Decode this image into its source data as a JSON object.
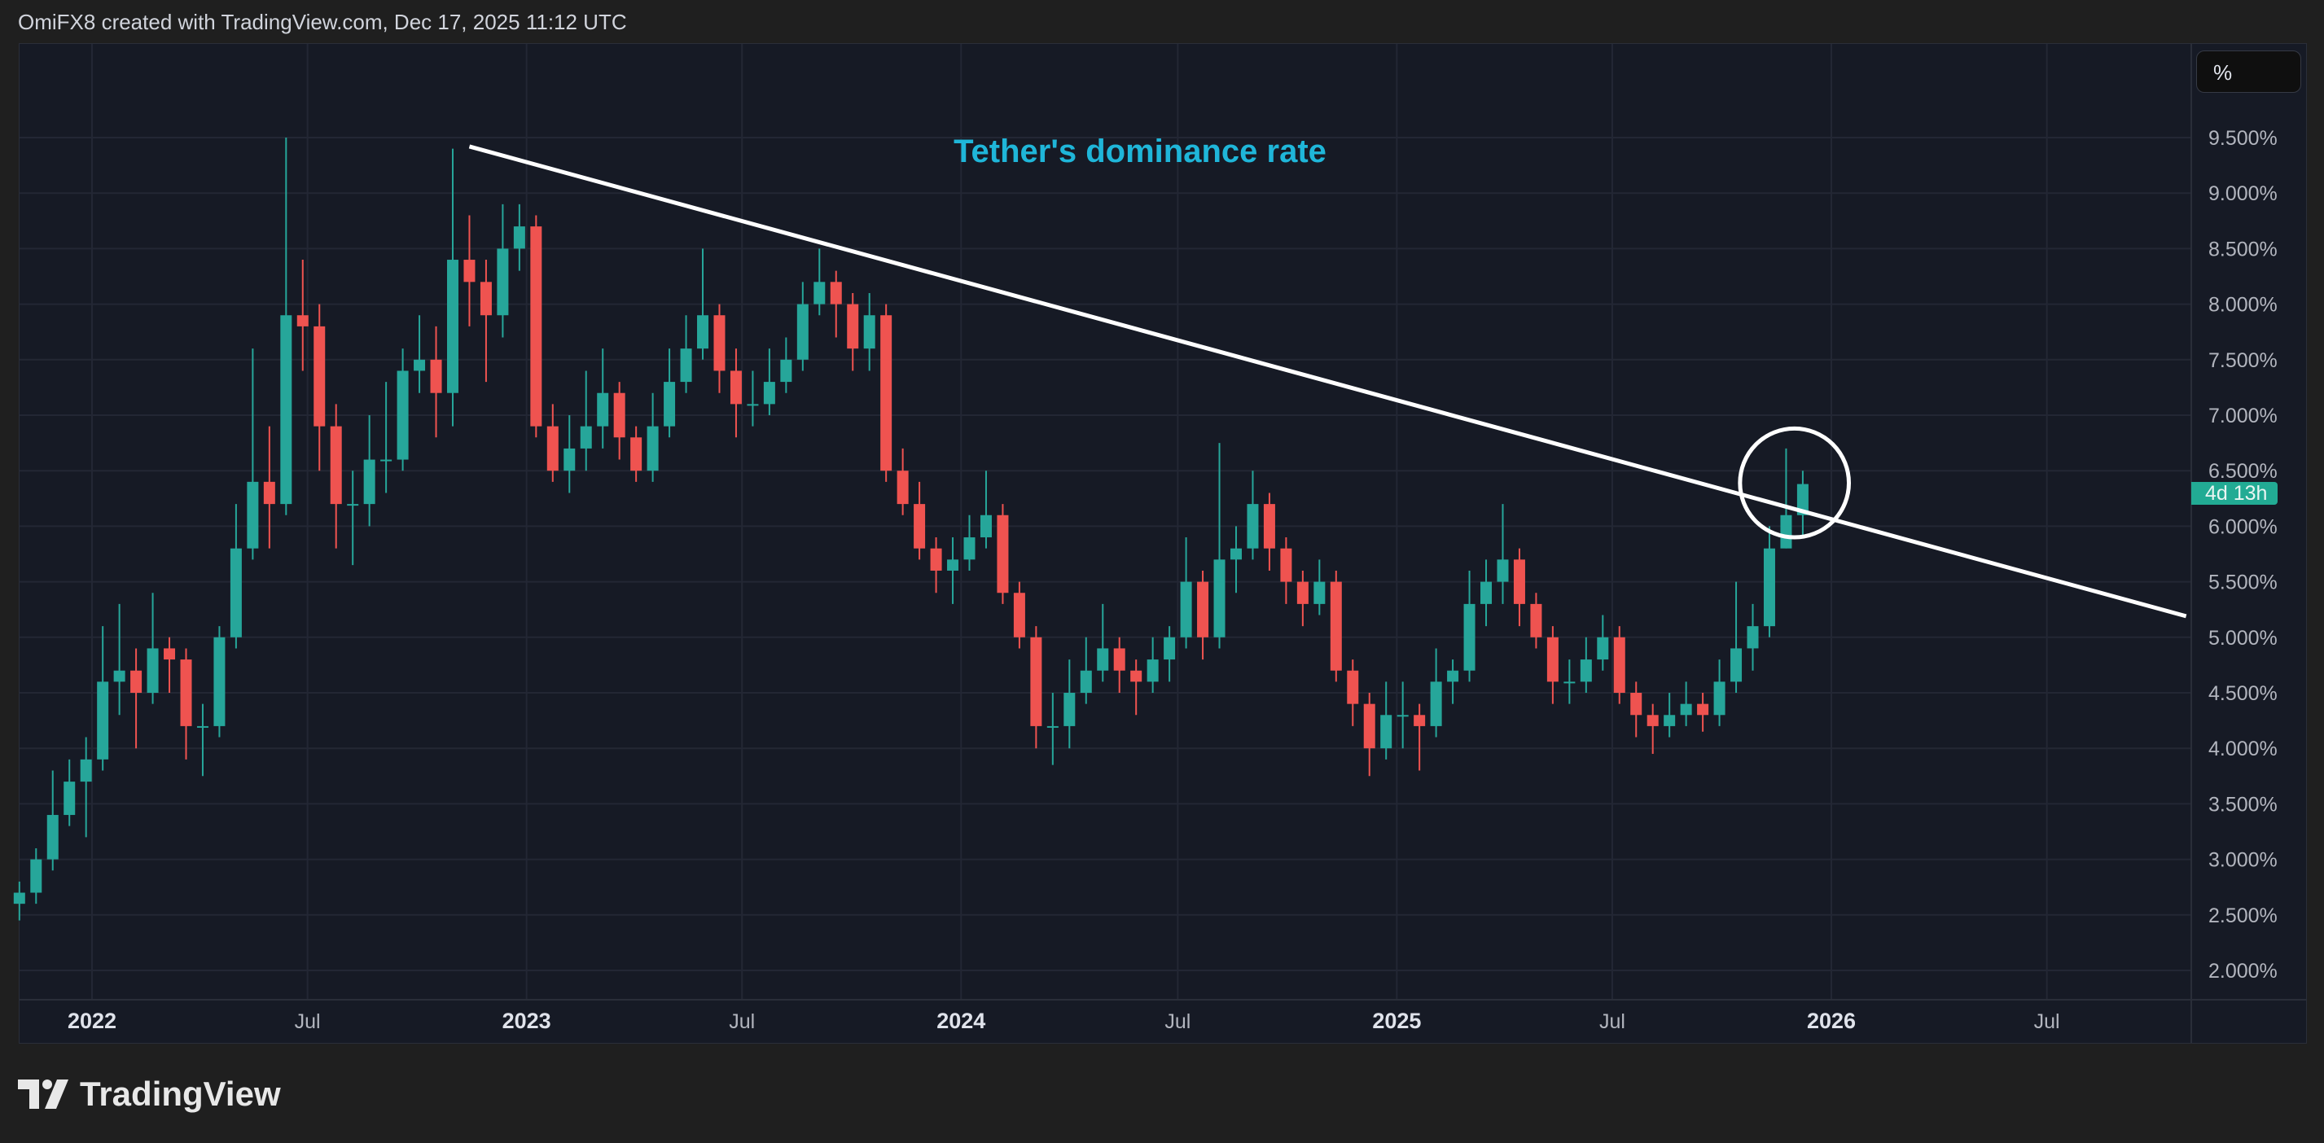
{
  "header": {
    "attribution": "OmiFX8 created with TradingView.com, Dec 17, 2025 11:12 UTC"
  },
  "scale_button": {
    "label": "%"
  },
  "countdown_badge": {
    "label": "4d 13h",
    "color": "#22ab94"
  },
  "logo": {
    "text": "TradingView"
  },
  "colors": {
    "up": "#26a69a",
    "down": "#ef5350",
    "title": "#1fb6d9",
    "grid": "#232734",
    "axis_text": "#b2b5be",
    "drawing": "#ffffff"
  },
  "chart_data": {
    "type": "candlestick",
    "title": "Tether's dominance rate",
    "y_unit": "%",
    "ylim": [
      1.74,
      10.35
    ],
    "xlim": [
      "2021-10-20",
      "2026-10-26"
    ],
    "grid": true,
    "y_ticks": [
      "9.500%",
      "9.000%",
      "8.500%",
      "8.000%",
      "7.500%",
      "7.000%",
      "6.500%",
      "6.000%",
      "5.500%",
      "5.000%",
      "4.500%",
      "4.000%",
      "3.500%",
      "3.000%",
      "2.500%",
      "2.000%"
    ],
    "y_tick_values": [
      9.5,
      9.0,
      8.5,
      8.0,
      7.5,
      7.0,
      6.5,
      6.0,
      5.5,
      5.0,
      4.5,
      4.0,
      3.5,
      3.0,
      2.5,
      2.0
    ],
    "x_ticks": [
      {
        "label": "2022",
        "date": "2022-01-01",
        "bold": true
      },
      {
        "label": "Jul",
        "date": "2022-07-01"
      },
      {
        "label": "2023",
        "date": "2023-01-01",
        "bold": true
      },
      {
        "label": "Jul",
        "date": "2023-07-01"
      },
      {
        "label": "2024",
        "date": "2024-01-01",
        "bold": true
      },
      {
        "label": "Jul",
        "date": "2024-07-01"
      },
      {
        "label": "2025",
        "date": "2025-01-01",
        "bold": true
      },
      {
        "label": "Jul",
        "date": "2025-07-01"
      },
      {
        "label": "2026",
        "date": "2026-01-01",
        "bold": true
      },
      {
        "label": "Jul",
        "date": "2026-07-01"
      }
    ],
    "first_candle_date": "2021-11-01",
    "candle_period_days": 14,
    "candles_ohlc": [
      [
        2.6,
        2.8,
        2.45,
        2.7
      ],
      [
        2.7,
        3.1,
        2.6,
        3.0
      ],
      [
        3.0,
        3.8,
        2.9,
        3.4
      ],
      [
        3.4,
        3.9,
        3.3,
        3.7
      ],
      [
        3.7,
        4.1,
        3.2,
        3.9
      ],
      [
        3.9,
        5.1,
        3.8,
        4.6
      ],
      [
        4.6,
        5.3,
        4.3,
        4.7
      ],
      [
        4.7,
        4.9,
        4.0,
        4.5
      ],
      [
        4.5,
        5.4,
        4.4,
        4.9
      ],
      [
        4.9,
        5.0,
        4.5,
        4.8
      ],
      [
        4.8,
        4.9,
        3.9,
        4.2
      ],
      [
        4.2,
        4.4,
        3.75,
        4.2
      ],
      [
        4.2,
        5.1,
        4.1,
        5.0
      ],
      [
        5.0,
        6.2,
        4.9,
        5.8
      ],
      [
        5.8,
        7.6,
        5.7,
        6.4
      ],
      [
        6.4,
        6.9,
        5.8,
        6.2
      ],
      [
        6.2,
        9.5,
        6.1,
        7.9
      ],
      [
        7.9,
        8.4,
        7.4,
        7.8
      ],
      [
        7.8,
        8.0,
        6.5,
        6.9
      ],
      [
        6.9,
        7.1,
        5.8,
        6.2
      ],
      [
        6.2,
        6.5,
        5.65,
        6.2
      ],
      [
        6.2,
        7.0,
        6.0,
        6.6
      ],
      [
        6.6,
        7.3,
        6.3,
        6.6
      ],
      [
        6.6,
        7.6,
        6.5,
        7.4
      ],
      [
        7.4,
        7.9,
        7.2,
        7.5
      ],
      [
        7.5,
        7.8,
        6.8,
        7.2
      ],
      [
        7.2,
        9.4,
        6.9,
        8.4
      ],
      [
        8.4,
        8.8,
        7.8,
        8.2
      ],
      [
        8.2,
        8.4,
        7.3,
        7.9
      ],
      [
        7.9,
        8.9,
        7.7,
        8.5
      ],
      [
        8.5,
        8.9,
        8.3,
        8.7
      ],
      [
        8.7,
        8.8,
        6.8,
        6.9
      ],
      [
        6.9,
        7.1,
        6.4,
        6.5
      ],
      [
        6.5,
        7.0,
        6.3,
        6.7
      ],
      [
        6.7,
        7.4,
        6.5,
        6.9
      ],
      [
        6.9,
        7.6,
        6.7,
        7.2
      ],
      [
        7.2,
        7.3,
        6.6,
        6.8
      ],
      [
        6.8,
        6.9,
        6.4,
        6.5
      ],
      [
        6.5,
        7.2,
        6.4,
        6.9
      ],
      [
        6.9,
        7.6,
        6.8,
        7.3
      ],
      [
        7.3,
        7.9,
        7.2,
        7.6
      ],
      [
        7.6,
        8.5,
        7.5,
        7.9
      ],
      [
        7.9,
        8.0,
        7.2,
        7.4
      ],
      [
        7.4,
        7.6,
        6.8,
        7.1
      ],
      [
        7.1,
        7.4,
        6.9,
        7.1
      ],
      [
        7.1,
        7.6,
        7.0,
        7.3
      ],
      [
        7.3,
        7.7,
        7.2,
        7.5
      ],
      [
        7.5,
        8.2,
        7.4,
        8.0
      ],
      [
        8.0,
        8.5,
        7.9,
        8.2
      ],
      [
        8.2,
        8.3,
        7.7,
        8.0
      ],
      [
        8.0,
        8.1,
        7.4,
        7.6
      ],
      [
        7.6,
        8.1,
        7.4,
        7.9
      ],
      [
        7.9,
        8.0,
        6.4,
        6.5
      ],
      [
        6.5,
        6.7,
        6.1,
        6.2
      ],
      [
        6.2,
        6.4,
        5.7,
        5.8
      ],
      [
        5.8,
        5.9,
        5.4,
        5.6
      ],
      [
        5.6,
        5.9,
        5.3,
        5.7
      ],
      [
        5.7,
        6.1,
        5.6,
        5.9
      ],
      [
        5.9,
        6.5,
        5.8,
        6.1
      ],
      [
        6.1,
        6.2,
        5.3,
        5.4
      ],
      [
        5.4,
        5.5,
        4.9,
        5.0
      ],
      [
        5.0,
        5.1,
        4.0,
        4.2
      ],
      [
        4.2,
        4.5,
        3.85,
        4.2
      ],
      [
        4.2,
        4.8,
        4.0,
        4.5
      ],
      [
        4.5,
        5.0,
        4.4,
        4.7
      ],
      [
        4.7,
        5.3,
        4.6,
        4.9
      ],
      [
        4.9,
        5.0,
        4.5,
        4.7
      ],
      [
        4.7,
        4.8,
        4.3,
        4.6
      ],
      [
        4.6,
        5.0,
        4.5,
        4.8
      ],
      [
        4.8,
        5.1,
        4.6,
        5.0
      ],
      [
        5.0,
        5.9,
        4.9,
        5.5
      ],
      [
        5.5,
        5.6,
        4.8,
        5.0
      ],
      [
        5.0,
        6.75,
        4.9,
        5.7
      ],
      [
        5.7,
        6.0,
        5.4,
        5.8
      ],
      [
        5.8,
        6.5,
        5.7,
        6.2
      ],
      [
        6.2,
        6.3,
        5.6,
        5.8
      ],
      [
        5.8,
        5.9,
        5.3,
        5.5
      ],
      [
        5.5,
        5.6,
        5.1,
        5.3
      ],
      [
        5.3,
        5.7,
        5.2,
        5.5
      ],
      [
        5.5,
        5.6,
        4.6,
        4.7
      ],
      [
        4.7,
        4.8,
        4.2,
        4.4
      ],
      [
        4.4,
        4.5,
        3.75,
        4.0
      ],
      [
        4.0,
        4.6,
        3.9,
        4.3
      ],
      [
        4.3,
        4.6,
        4.0,
        4.3
      ],
      [
        4.3,
        4.4,
        3.8,
        4.2
      ],
      [
        4.2,
        4.9,
        4.1,
        4.6
      ],
      [
        4.6,
        4.8,
        4.4,
        4.7
      ],
      [
        4.7,
        5.6,
        4.6,
        5.3
      ],
      [
        5.3,
        5.7,
        5.1,
        5.5
      ],
      [
        5.5,
        6.2,
        5.3,
        5.7
      ],
      [
        5.7,
        5.8,
        5.1,
        5.3
      ],
      [
        5.3,
        5.4,
        4.9,
        5.0
      ],
      [
        5.0,
        5.1,
        4.4,
        4.6
      ],
      [
        4.6,
        4.8,
        4.4,
        4.6
      ],
      [
        4.6,
        5.0,
        4.5,
        4.8
      ],
      [
        4.8,
        5.2,
        4.7,
        5.0
      ],
      [
        5.0,
        5.1,
        4.4,
        4.5
      ],
      [
        4.5,
        4.6,
        4.1,
        4.3
      ],
      [
        4.3,
        4.4,
        3.95,
        4.2
      ],
      [
        4.2,
        4.5,
        4.1,
        4.3
      ],
      [
        4.3,
        4.6,
        4.2,
        4.4
      ],
      [
        4.4,
        4.5,
        4.15,
        4.3
      ],
      [
        4.3,
        4.8,
        4.2,
        4.6
      ],
      [
        4.6,
        5.5,
        4.5,
        4.9
      ],
      [
        4.9,
        5.3,
        4.7,
        5.1
      ],
      [
        5.1,
        6.0,
        5.0,
        5.8
      ],
      [
        5.8,
        6.7,
        5.8,
        6.1
      ],
      [
        6.1,
        6.5,
        5.9,
        6.38
      ]
    ],
    "annotations": {
      "trendline": {
        "start": {
          "date": "2022-11-14",
          "value": 9.42
        },
        "end": {
          "date": "2026-10-26",
          "value": 5.19
        }
      },
      "circle": {
        "center": {
          "date": "2025-12-01",
          "value": 6.39
        },
        "radius_value": 0.49
      }
    }
  }
}
